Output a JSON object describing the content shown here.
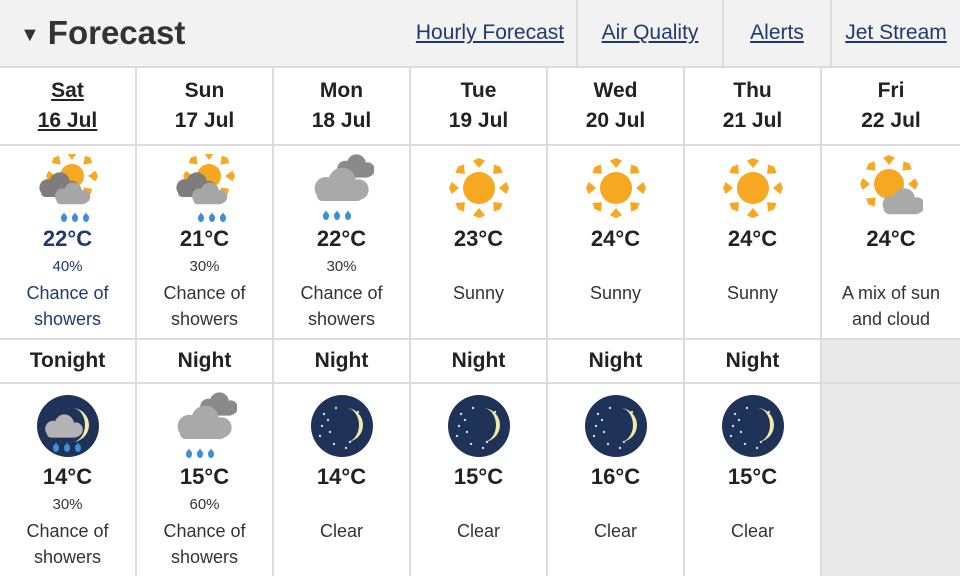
{
  "header": {
    "title": "Forecast",
    "links": [
      "Hourly Forecast",
      "Air Quality",
      "Alerts",
      "Jet Stream"
    ]
  },
  "days": [
    {
      "name": "Sat",
      "date": "16 Jul",
      "icon": "sun-cloud-showers-icon",
      "temp": "22°C",
      "pop": "40%",
      "desc": "Chance of showers"
    },
    {
      "name": "Sun",
      "date": "17 Jul",
      "icon": "sun-cloud-showers-icon",
      "temp": "21°C",
      "pop": "30%",
      "desc": "Chance of showers"
    },
    {
      "name": "Mon",
      "date": "18 Jul",
      "icon": "cloud-showers-icon",
      "temp": "22°C",
      "pop": "30%",
      "desc": "Chance of showers"
    },
    {
      "name": "Tue",
      "date": "19 Jul",
      "icon": "sun-icon",
      "temp": "23°C",
      "pop": "",
      "desc": "Sunny"
    },
    {
      "name": "Wed",
      "date": "20 Jul",
      "icon": "sun-icon",
      "temp": "24°C",
      "pop": "",
      "desc": "Sunny"
    },
    {
      "name": "Thu",
      "date": "21 Jul",
      "icon": "sun-icon",
      "temp": "24°C",
      "pop": "",
      "desc": "Sunny"
    },
    {
      "name": "Fri",
      "date": "22 Jul",
      "icon": "sun-cloud-icon",
      "temp": "24°C",
      "pop": "",
      "desc": "A mix of sun and cloud"
    }
  ],
  "nights": [
    {
      "label": "Tonight",
      "icon": "moon-cloud-showers-icon",
      "temp": "14°C",
      "pop": "30%",
      "desc": "Chance of showers"
    },
    {
      "label": "Night",
      "icon": "cloud-showers-icon",
      "temp": "15°C",
      "pop": "60%",
      "desc": "Chance of showers"
    },
    {
      "label": "Night",
      "icon": "clear-night-icon",
      "temp": "14°C",
      "pop": "",
      "desc": "Clear"
    },
    {
      "label": "Night",
      "icon": "clear-night-icon",
      "temp": "15°C",
      "pop": "",
      "desc": "Clear"
    },
    {
      "label": "Night",
      "icon": "clear-night-icon",
      "temp": "16°C",
      "pop": "",
      "desc": "Clear"
    },
    {
      "label": "Night",
      "icon": "clear-night-icon",
      "temp": "15°C",
      "pop": "",
      "desc": "Clear"
    }
  ],
  "colors": {
    "accent": "#1f3a6e",
    "sun": "#f7a823",
    "cloud": "#8f8f8f",
    "rain": "#3b8fd6",
    "night": "#1e3357",
    "moon": "#f3e9a8"
  }
}
